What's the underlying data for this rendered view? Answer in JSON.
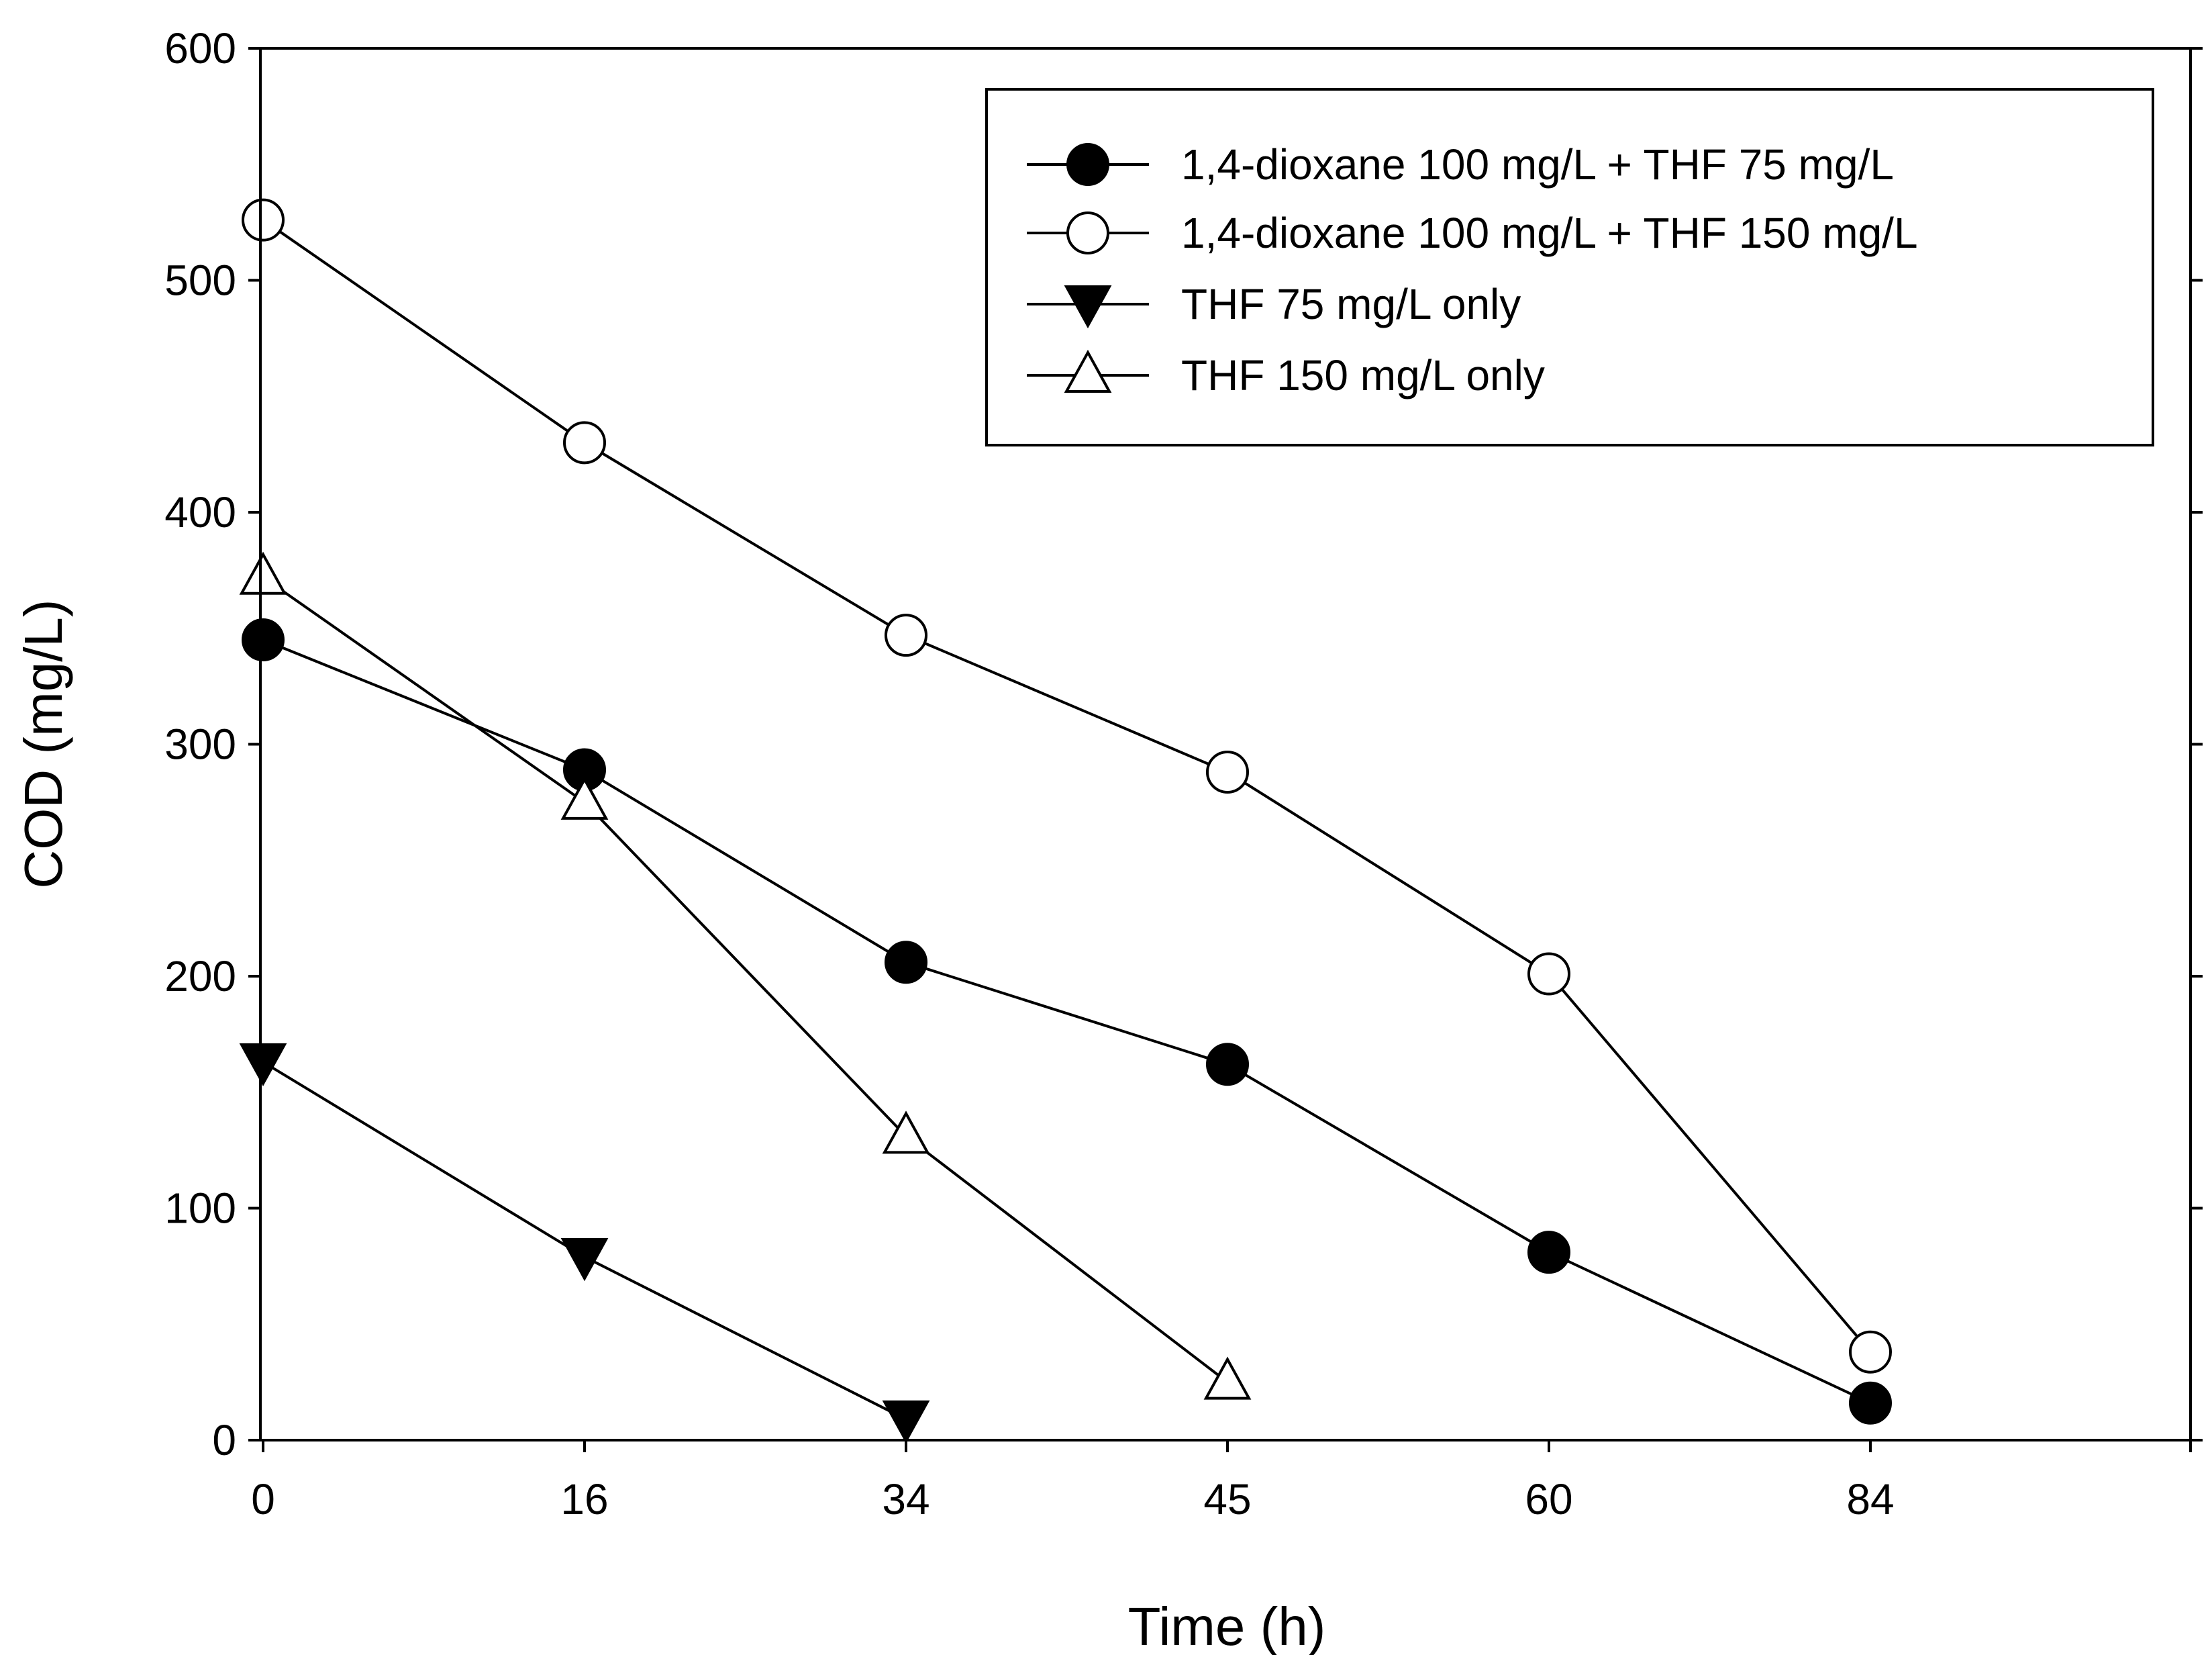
{
  "chart_data": {
    "type": "line",
    "title": "",
    "xlabel": "Time (h)",
    "ylabel": "COD (mg/L)",
    "x_categories": [
      "0",
      "16",
      "34",
      "45",
      "60",
      "84"
    ],
    "xlim": [
      0,
      6
    ],
    "ylim": [
      0,
      600
    ],
    "y_ticks": [
      0,
      100,
      200,
      300,
      400,
      500,
      600
    ],
    "grid": false,
    "legend_position": "top-right",
    "series": [
      {
        "name": "1,4-dioxane 100 mg/L + THF 75 mg/L",
        "marker": "filled-circle",
        "color": "#000000",
        "points": [
          [
            0,
            345
          ],
          [
            1,
            289
          ],
          [
            2,
            206
          ],
          [
            3,
            162
          ],
          [
            4,
            81
          ],
          [
            5,
            16
          ]
        ]
      },
      {
        "name": "1,4-dioxane 100 mg/L + THF 150 mg/L",
        "marker": "open-circle",
        "color": "#000000",
        "points": [
          [
            0,
            526
          ],
          [
            1,
            430
          ],
          [
            2,
            347
          ],
          [
            3,
            288
          ],
          [
            4,
            201
          ],
          [
            5,
            38
          ]
        ]
      },
      {
        "name": "THF 75 mg/L only",
        "marker": "filled-triangle-down",
        "color": "#000000",
        "points": [
          [
            0,
            163
          ],
          [
            1,
            79
          ],
          [
            2,
            9
          ]
        ]
      },
      {
        "name": "THF 150 mg/L only",
        "marker": "open-triangle-up",
        "color": "#000000",
        "points": [
          [
            0,
            372
          ],
          [
            1,
            275
          ],
          [
            2,
            131
          ],
          [
            3,
            25
          ]
        ]
      }
    ]
  }
}
